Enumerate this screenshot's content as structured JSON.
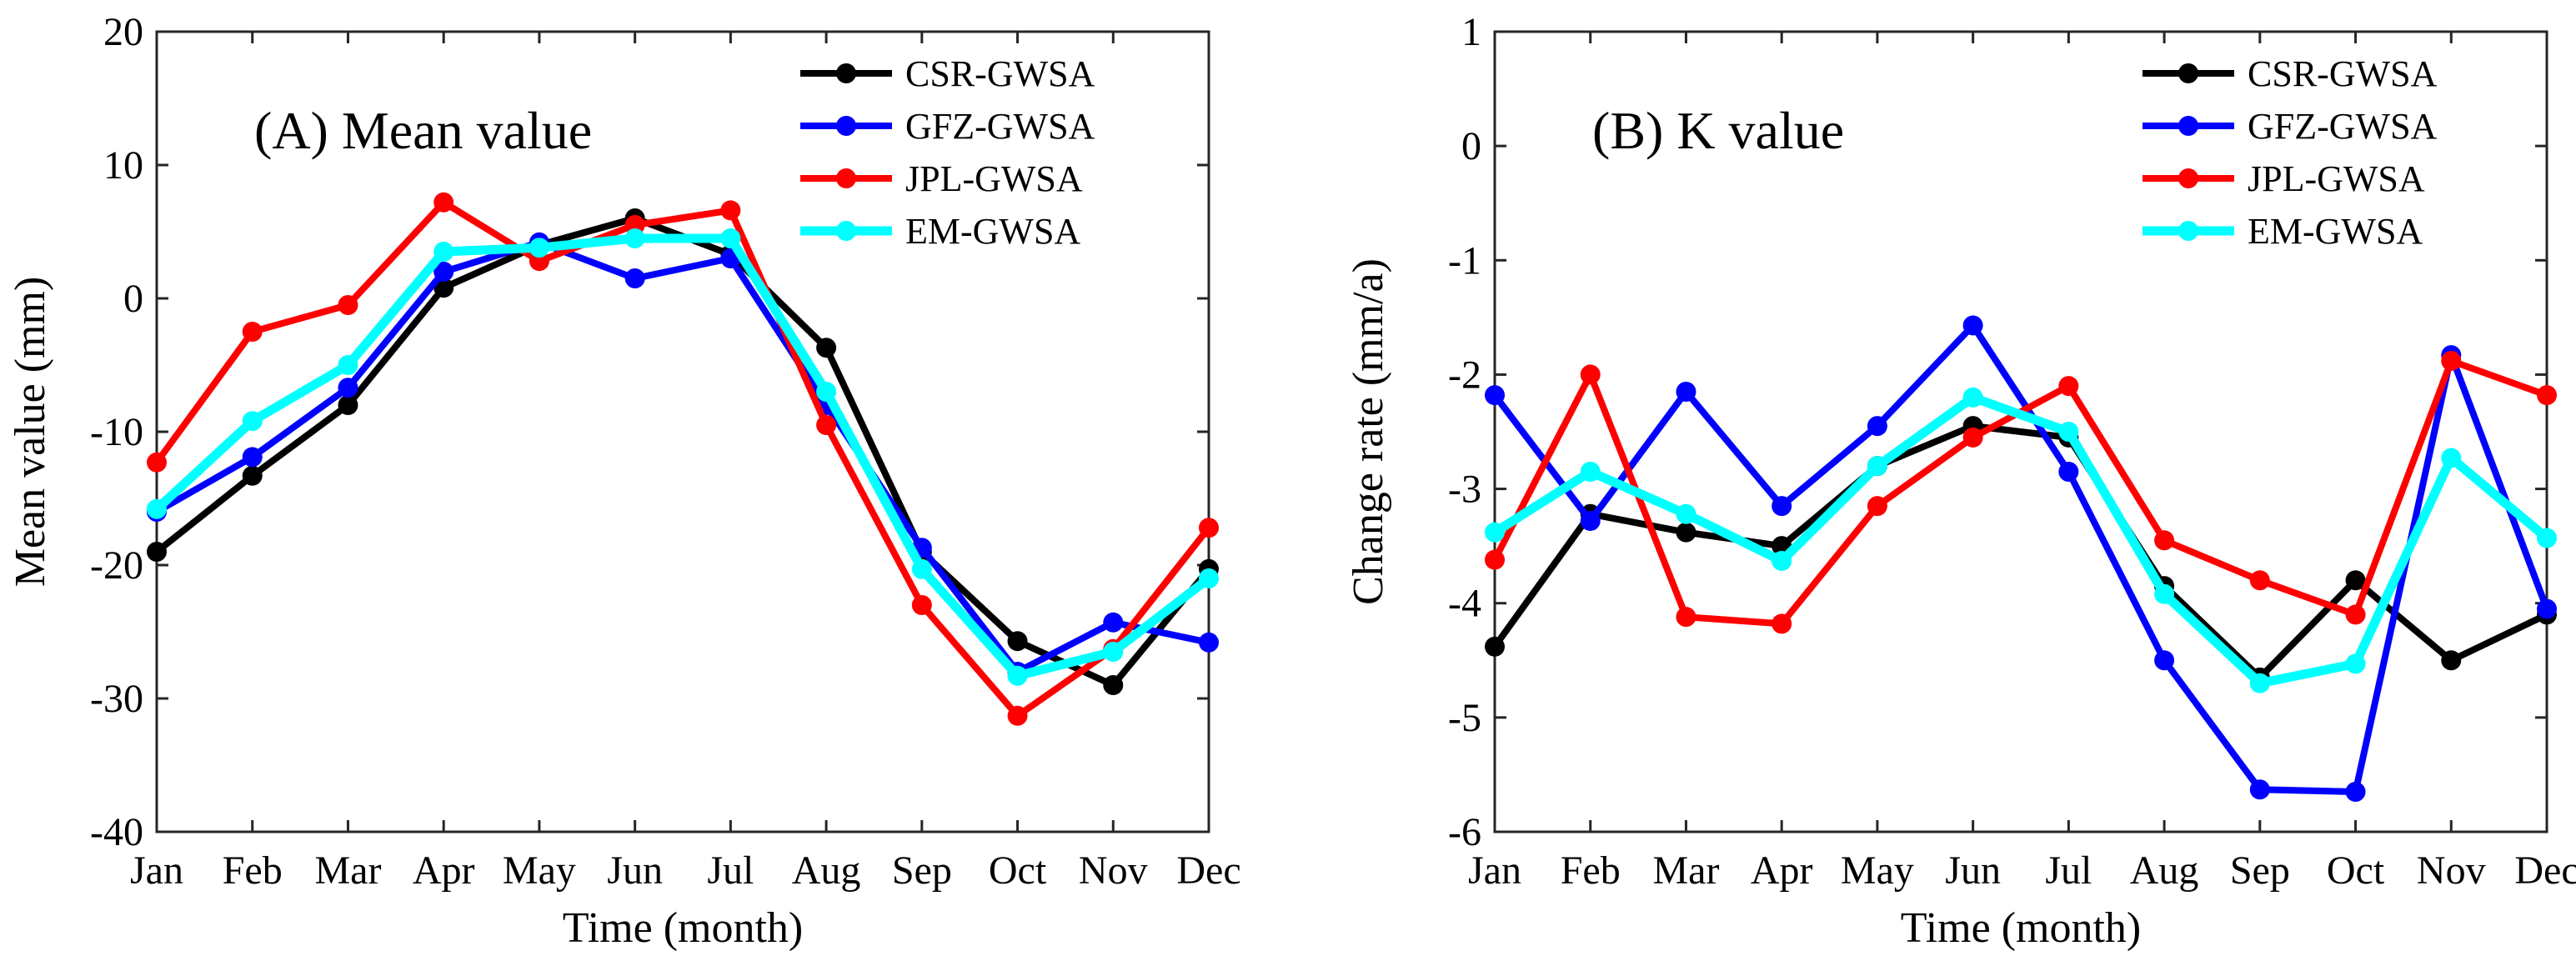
{
  "chart_data": [
    {
      "type": "line",
      "title": "(A) Mean value",
      "xlabel": "Time (month)",
      "ylabel": "Mean value (mm)",
      "categories": [
        "Jan",
        "Feb",
        "Mar",
        "Apr",
        "May",
        "Jun",
        "Jul",
        "Aug",
        "Sep",
        "Oct",
        "Nov",
        "Dec"
      ],
      "ylim": [
        -40,
        20
      ],
      "yticks": [
        -40,
        -30,
        -20,
        -10,
        0,
        10,
        20
      ],
      "legend_position": "top-right",
      "series": [
        {
          "name": "CSR-GWSA",
          "color": "#000000",
          "values": [
            -19.0,
            -13.3,
            -8.0,
            0.8,
            4.0,
            6.0,
            3.3,
            -3.7,
            -19.0,
            -25.7,
            -29.0,
            -20.3
          ]
        },
        {
          "name": "GFZ-GWSA",
          "color": "#0000ff",
          "values": [
            -16.0,
            -11.9,
            -6.7,
            2.0,
            4.2,
            1.5,
            3.0,
            -8.0,
            -18.7,
            -28.0,
            -24.3,
            -25.8
          ]
        },
        {
          "name": "JPL-GWSA",
          "color": "#ff0000",
          "values": [
            -12.3,
            -2.5,
            -0.5,
            7.2,
            2.8,
            5.5,
            6.6,
            -9.5,
            -23.0,
            -31.3,
            -26.3,
            -17.2
          ]
        },
        {
          "name": "EM-GWSA",
          "color": "#00ffff",
          "values": [
            -15.8,
            -9.2,
            -5.0,
            3.5,
            3.8,
            4.5,
            4.5,
            -7.0,
            -20.3,
            -28.3,
            -26.5,
            -21.0
          ]
        }
      ]
    },
    {
      "type": "line",
      "title": "(B) K value",
      "xlabel": "Time (month)",
      "ylabel": "Change rate (mm/a)",
      "categories": [
        "Jan",
        "Feb",
        "Mar",
        "Apr",
        "May",
        "Jun",
        "Jul",
        "Aug",
        "Sep",
        "Oct",
        "Nov",
        "Dec"
      ],
      "ylim": [
        -6,
        1
      ],
      "yticks": [
        -6,
        -5,
        -4,
        -3,
        -2,
        -1,
        0,
        1
      ],
      "legend_position": "top-right",
      "series": [
        {
          "name": "CSR-GWSA",
          "color": "#000000",
          "values": [
            -4.38,
            -3.22,
            -3.38,
            -3.5,
            -2.8,
            -2.45,
            -2.55,
            -3.85,
            -4.65,
            -3.8,
            -4.5,
            -4.1
          ]
        },
        {
          "name": "GFZ-GWSA",
          "color": "#0000ff",
          "values": [
            -2.18,
            -3.28,
            -2.15,
            -3.15,
            -2.45,
            -1.57,
            -2.85,
            -4.5,
            -5.63,
            -5.65,
            -1.83,
            -4.05
          ]
        },
        {
          "name": "JPL-GWSA",
          "color": "#ff0000",
          "values": [
            -3.62,
            -2.0,
            -4.12,
            -4.18,
            -3.15,
            -2.55,
            -2.1,
            -3.45,
            -3.8,
            -4.1,
            -1.88,
            -2.18
          ]
        },
        {
          "name": "EM-GWSA",
          "color": "#00ffff",
          "values": [
            -3.38,
            -2.85,
            -3.22,
            -3.63,
            -2.8,
            -2.2,
            -2.5,
            -3.92,
            -4.7,
            -4.53,
            -2.73,
            -3.43
          ]
        }
      ]
    }
  ]
}
